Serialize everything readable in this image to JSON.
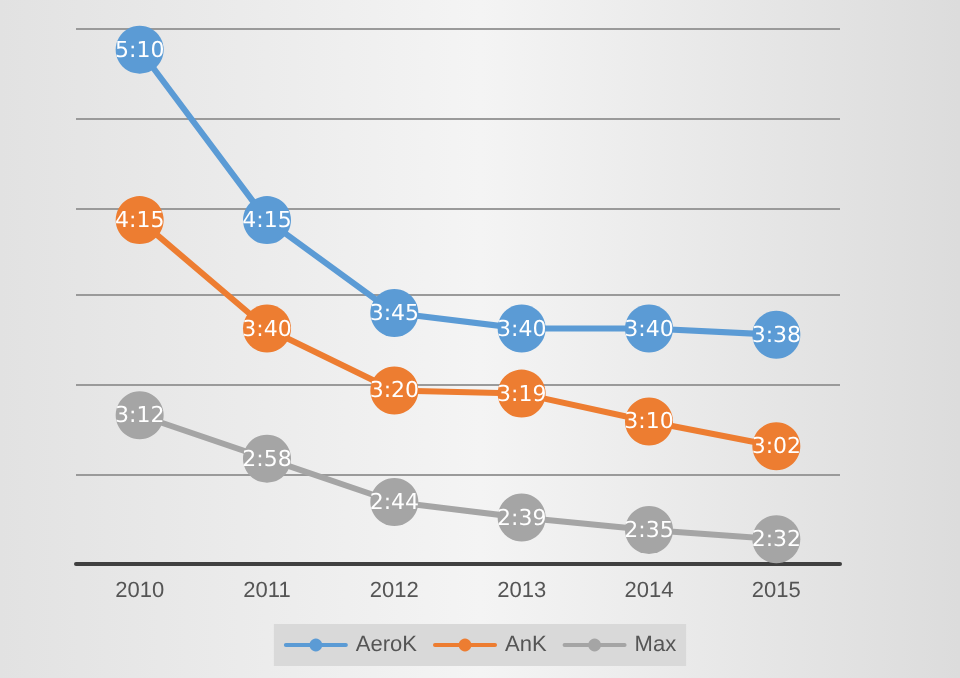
{
  "chart_data": {
    "type": "line",
    "categories": [
      "2010",
      "2011",
      "2012",
      "2013",
      "2014",
      "2015"
    ],
    "series": [
      {
        "name": "AeroK",
        "color": "#5b9bd5",
        "values": [
          310,
          255,
          225,
          220,
          220,
          218
        ],
        "value_labels": [
          "5:10",
          "4:15",
          "3:45",
          "3:40",
          "3:40",
          "3:38"
        ]
      },
      {
        "name": "AnK",
        "color": "#ed7d31",
        "values": [
          255,
          220,
          200,
          199,
          190,
          182
        ],
        "value_labels": [
          "4:15",
          "3:40",
          "3:20",
          "3:19",
          "3:10",
          "3:02"
        ]
      },
      {
        "name": "Max",
        "color": "#a5a5a5",
        "values": [
          192,
          178,
          164,
          159,
          155,
          152
        ],
        "value_labels": [
          "3:12",
          "2:58",
          "2:44",
          "2:39",
          "2:35",
          "2:32"
        ]
      }
    ],
    "ylim": [
      144,
      317
    ],
    "yticks": [
      {
        "value": 144,
        "label": null
      },
      {
        "value": 173,
        "label": null
      },
      {
        "value": 202,
        "label": null
      },
      {
        "value": 231,
        "label": null
      },
      {
        "value": 259,
        "label": null
      },
      {
        "value": 288,
        "label": null
      },
      {
        "value": 317,
        "label": null
      }
    ],
    "grid": "y",
    "legend": "bottom",
    "marker": "circle",
    "line_style": "solid",
    "tick_labels": "x"
  }
}
